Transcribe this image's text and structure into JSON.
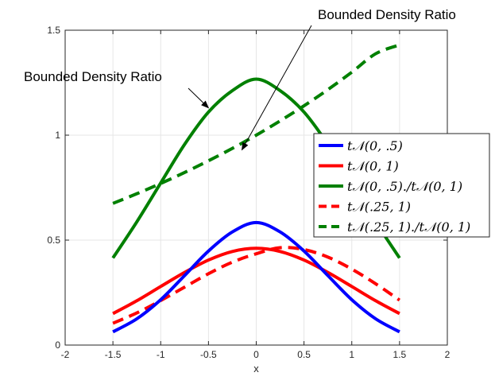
{
  "chart_data": {
    "type": "line",
    "title": "",
    "xlabel": "x",
    "ylabel": "",
    "xlim": [
      -2,
      2
    ],
    "ylim": [
      0,
      1.5
    ],
    "xticks": [
      -2,
      -1.5,
      -1,
      -0.5,
      0,
      0.5,
      1,
      1.5,
      2
    ],
    "xtick_labels": [
      "-2",
      "-1.5",
      "-1",
      "-0.5",
      "0",
      "0.5",
      "1",
      "1.5",
      "2"
    ],
    "yticks": [
      0,
      0.5,
      1,
      1.5
    ],
    "ytick_labels": [
      "0",
      "0.5",
      "1",
      "1.5"
    ],
    "grid": true,
    "legend_position": "right",
    "series": [
      {
        "name": "tN(0, .5)",
        "color": "#0000ff",
        "dash": "solid",
        "x": [
          -1.5,
          -1.25,
          -1.0,
          -0.75,
          -0.5,
          -0.25,
          0.0,
          0.25,
          0.5,
          0.75,
          1.0,
          1.25,
          1.5
        ],
        "values": [
          0.063,
          0.125,
          0.216,
          0.331,
          0.448,
          0.539,
          0.584,
          0.539,
          0.448,
          0.331,
          0.216,
          0.125,
          0.063
        ]
      },
      {
        "name": "tN(0, 1)",
        "color": "#ff0000",
        "dash": "solid",
        "x": [
          -1.5,
          -1.25,
          -1.0,
          -0.75,
          -0.5,
          -0.25,
          0.0,
          0.25,
          0.5,
          0.75,
          1.0,
          1.25,
          1.5
        ],
        "values": [
          0.15,
          0.211,
          0.279,
          0.346,
          0.405,
          0.446,
          0.461,
          0.446,
          0.405,
          0.346,
          0.279,
          0.211,
          0.15
        ]
      },
      {
        "name": "tN(0, .5)./tN(0, 1)",
        "color": "#008000",
        "dash": "solid",
        "x": [
          -1.5,
          -1.25,
          -1.0,
          -0.75,
          -0.5,
          -0.25,
          0.0,
          0.25,
          0.5,
          0.75,
          1.0,
          1.25,
          1.5
        ],
        "values": [
          0.415,
          0.587,
          0.772,
          0.956,
          1.11,
          1.212,
          1.267,
          1.212,
          1.11,
          0.956,
          0.772,
          0.587,
          0.415
        ]
      },
      {
        "name": "tN(.25, 1)",
        "color": "#ff0000",
        "dash": "dashed",
        "x": [
          -1.5,
          -1.25,
          -1.0,
          -0.75,
          -0.5,
          -0.25,
          0.0,
          0.25,
          0.5,
          0.75,
          1.0,
          1.25,
          1.5
        ],
        "values": [
          0.104,
          0.153,
          0.212,
          0.276,
          0.34,
          0.395,
          0.435,
          0.464,
          0.455,
          0.419,
          0.362,
          0.292,
          0.214
        ]
      },
      {
        "name": "tN(.25, 1)./tN(0, 1)",
        "color": "#008000",
        "dash": "dashed",
        "x": [
          -1.5,
          -1.25,
          -1.0,
          -0.75,
          -0.5,
          -0.25,
          0.0,
          0.25,
          0.5,
          0.75,
          1.0,
          1.25,
          1.5
        ],
        "values": [
          0.675,
          0.721,
          0.77,
          0.822,
          0.878,
          0.937,
          1.0,
          1.068,
          1.14,
          1.217,
          1.3,
          1.388,
          1.43
        ]
      }
    ],
    "annotations": [
      {
        "text": "Bounded Density Ratio",
        "points_to_x": -0.5,
        "points_to_y": 1.13
      },
      {
        "text": "Bounded Density Ratio",
        "points_to_x": -0.15,
        "points_to_y": 0.93
      }
    ],
    "legend_entries": [
      {
        "prefix": "t",
        "dist": "𝒩",
        "args": "(0, .5)"
      },
      {
        "prefix": "t",
        "dist": "𝒩",
        "args": "(0, 1)"
      },
      {
        "prefix": "t",
        "dist": "𝒩",
        "args": "(0, .5)./t𝒩(0, 1)"
      },
      {
        "prefix": "t",
        "dist": "𝒩",
        "args": "(.25, 1)"
      },
      {
        "prefix": "t",
        "dist": "𝒩",
        "args": "(.25, 1)./t𝒩(0, 1)"
      }
    ]
  }
}
